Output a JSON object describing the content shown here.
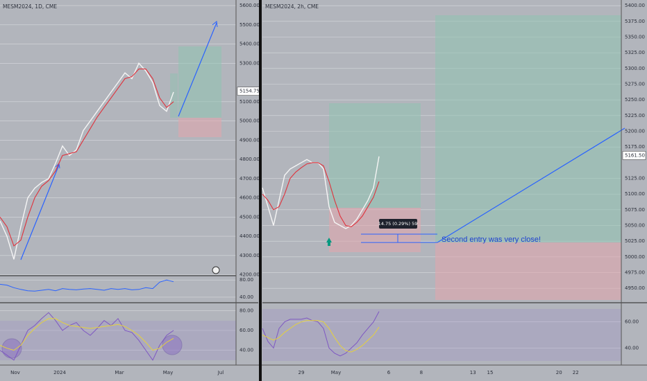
{
  "chart_data": [
    {
      "type": "line",
      "title": "MESM2024, 1D, CME",
      "xlim": [
        0,
        34
      ],
      "xticks": [
        {
          "value": 2.2,
          "label": "Nov"
        },
        {
          "value": 8.6,
          "label": "2024"
        },
        {
          "value": 17.2,
          "label": "Mar"
        },
        {
          "value": 24.2,
          "label": "May"
        },
        {
          "value": 31.8,
          "label": "Jul"
        }
      ],
      "ylim": [
        4195,
        5629
      ],
      "yticks": [
        {
          "value": 5600,
          "label": "5600.00"
        },
        {
          "value": 5500,
          "label": "5500.00"
        },
        {
          "value": 5400,
          "label": "5400.00"
        },
        {
          "value": 5300,
          "label": "5300.00"
        },
        {
          "value": 5100,
          "label": "5100.00"
        },
        {
          "value": 5000,
          "label": "5000.00"
        },
        {
          "value": 4900,
          "label": "4900.00"
        },
        {
          "value": 4800,
          "label": "4800.00"
        },
        {
          "value": 4700,
          "label": "4700.00"
        },
        {
          "value": 4600,
          "label": "4600.00"
        },
        {
          "value": 4500,
          "label": "4500.00"
        },
        {
          "value": 4400,
          "label": "4400.00"
        },
        {
          "value": 4300,
          "label": "4300.00"
        },
        {
          "value": 4200,
          "label": "4200.00"
        }
      ],
      "last_price": {
        "value": 5154.75,
        "label": "5154.75"
      },
      "series": [
        {
          "color": "#f5f5f5",
          "values": [
            4480,
            4400,
            4280,
            4450,
            4600,
            4650,
            4680,
            4700,
            4780,
            4870,
            4820,
            4850,
            4950,
            5000,
            5050,
            5100,
            5150,
            5200,
            5250,
            5220,
            5300,
            5260,
            5200,
            5080,
            5050,
            5150
          ]
        },
        {
          "color": "#e0313b",
          "values": [
            4500,
            4450,
            4350,
            4380,
            4500,
            4600,
            4660,
            4690,
            4740,
            4820,
            4830,
            4840,
            4900,
            4960,
            5020,
            5070,
            5120,
            5170,
            5220,
            5230,
            5270,
            5270,
            5220,
            5120,
            5070,
            5100
          ]
        }
      ],
      "panes": [
        {
          "ylim": [
            27,
            90
          ],
          "yticks": [
            {
              "value": 80,
              "label": "80.00"
            },
            {
              "value": 40,
              "label": "40.00"
            }
          ],
          "series": [
            {
              "color": "#2962ff",
              "values": [
                70,
                68,
                62,
                58,
                55,
                54,
                56,
                58,
                55,
                60,
                58,
                57,
                59,
                60,
                58,
                56,
                60,
                58,
                60,
                57,
                58,
                62,
                60,
                75,
                80,
                76
              ]
            }
          ]
        },
        {
          "ylim": [
            25,
            88
          ],
          "yticks": [
            {
              "value": 80,
              "label": "80.00"
            },
            {
              "value": 60,
              "label": "60.00"
            },
            {
              "value": 40,
              "label": "40.00"
            }
          ],
          "series": [
            {
              "color": "#7e57c2",
              "values": [
                40,
                35,
                30,
                45,
                60,
                65,
                72,
                78,
                70,
                60,
                65,
                68,
                60,
                55,
                62,
                70,
                65,
                72,
                60,
                58,
                50,
                40,
                30,
                45,
                55,
                60
              ]
            },
            {
              "color": "#e6d23a",
              "values": [
                45,
                42,
                40,
                45,
                55,
                62,
                68,
                72,
                72,
                68,
                65,
                64,
                63,
                62,
                63,
                64,
                65,
                66,
                64,
                60,
                55,
                48,
                40,
                42,
                48,
                52
              ]
            }
          ]
        }
      ]
    },
    {
      "type": "line",
      "title": "MESM2024, 2h, CME",
      "xlim": [
        0,
        64.625
      ],
      "xticks": [
        {
          "value": 7,
          "label": "29"
        },
        {
          "value": 13.25,
          "label": "May"
        },
        {
          "value": 22.75,
          "label": "6"
        },
        {
          "value": 28.6,
          "label": "8"
        },
        {
          "value": 37.9,
          "label": "13"
        },
        {
          "value": 41,
          "label": "15"
        },
        {
          "value": 53.4,
          "label": "20"
        },
        {
          "value": 56.4,
          "label": "22"
        }
      ],
      "ylim": [
        4927,
        5409
      ],
      "yticks": [
        {
          "value": 5400,
          "label": "5400.00"
        },
        {
          "value": 5375,
          "label": "5375.00"
        },
        {
          "value": 5350,
          "label": "5350.00"
        },
        {
          "value": 5325,
          "label": "5325.00"
        },
        {
          "value": 5300,
          "label": "5300.00"
        },
        {
          "value": 5275,
          "label": "5275.00"
        },
        {
          "value": 5250,
          "label": "5250.00"
        },
        {
          "value": 5225,
          "label": "5225.00"
        },
        {
          "value": 5200,
          "label": "5200.00"
        },
        {
          "value": 5175,
          "label": "5175.00"
        },
        {
          "value": 5125,
          "label": "5125.00"
        },
        {
          "value": 5100,
          "label": "5100.00"
        },
        {
          "value": 5075,
          "label": "5075.00"
        },
        {
          "value": 5050,
          "label": "5050.00"
        },
        {
          "value": 5025,
          "label": "5025.00"
        },
        {
          "value": 5000,
          "label": "5000.00"
        },
        {
          "value": 4975,
          "label": "4975.00"
        },
        {
          "value": 4950,
          "label": "4950.00"
        }
      ],
      "last_price": {
        "value": 5161.5,
        "label": "5161.50"
      },
      "annotations": [
        "Second entry was very close!",
        "14.75 (0.29%) 59"
      ],
      "series": [
        {
          "color": "#f5f5f5",
          "values": [
            5110,
            5080,
            5050,
            5090,
            5130,
            5140,
            5145,
            5150,
            5155,
            5150,
            5150,
            5140,
            5080,
            5055,
            5050,
            5045,
            5050,
            5060,
            5075,
            5090,
            5110,
            5160
          ]
        },
        {
          "color": "#e0313b",
          "values": [
            5100,
            5090,
            5075,
            5080,
            5100,
            5125,
            5135,
            5142,
            5148,
            5150,
            5150,
            5145,
            5120,
            5090,
            5065,
            5050,
            5048,
            5055,
            5065,
            5080,
            5095,
            5120
          ]
        }
      ],
      "panes": [
        {
          "ylim": [
            27,
            72
          ],
          "yticks": [
            {
              "value": 60,
              "label": "60.00"
            },
            {
              "value": 40,
              "label": "40.00"
            }
          ],
          "series": [
            {
              "color": "#7e57c2",
              "values": [
                55,
                45,
                40,
                55,
                60,
                62,
                62,
                62,
                63,
                61,
                60,
                55,
                40,
                36,
                34,
                36,
                40,
                44,
                50,
                55,
                60,
                68
              ]
            },
            {
              "color": "#e6d23a",
              "values": [
                50,
                48,
                46,
                48,
                52,
                55,
                58,
                60,
                61,
                61,
                61,
                60,
                55,
                48,
                42,
                38,
                37,
                39,
                42,
                46,
                50,
                56
              ]
            }
          ]
        }
      ]
    }
  ]
}
